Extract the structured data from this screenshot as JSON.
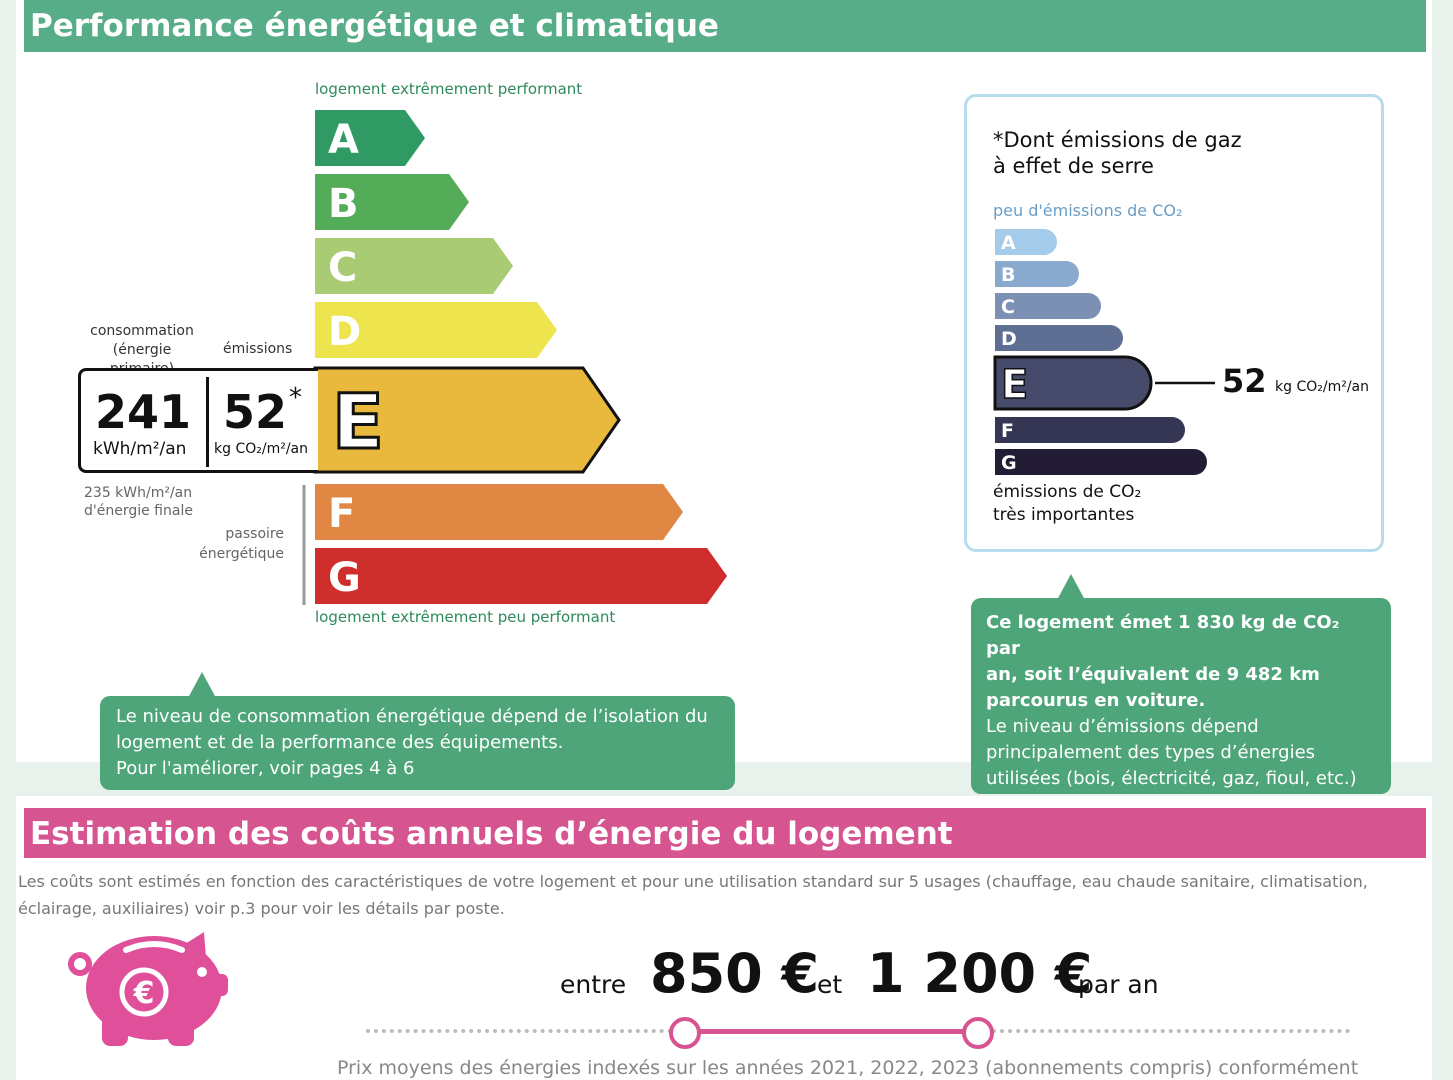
{
  "section1": {
    "title": "Performance énergétique et climatique",
    "top_label": "logement extrêmement performant",
    "bottom_label": "logement extrêmement peu performant",
    "classes": [
      "A",
      "B",
      "C",
      "D",
      "E",
      "F",
      "G"
    ],
    "class_colors": [
      "#2f9a63",
      "#55ac58",
      "#a8cb74",
      "#ede44e",
      "#e9b93d",
      "#e08743",
      "#cf2f2c"
    ],
    "current_class": "E",
    "consumption_label_1": "consommation",
    "consumption_label_2": "(énergie primaire)",
    "emissions_label": "émissions",
    "consumption_value": "241",
    "consumption_unit": "kWh/m²/an",
    "emissions_value": "52",
    "emissions_star": "*",
    "emissions_unit": "kg CO₂/m²/an",
    "final_energy_1": "235 kWh/m²/an",
    "final_energy_2": "d'énergie finale",
    "passoire_1": "passoire",
    "passoire_2": "énergétique",
    "bubble_line1": "Le niveau de consommation énergétique dépend de l’isolation du",
    "bubble_line2": "logement et de la performance des équipements.",
    "bubble_line3": "Pour l'améliorer, voir pages 4 à 6"
  },
  "ges": {
    "title_star": "*",
    "title_line1": "Dont émissions de gaz",
    "title_line2": "à effet de serre",
    "top_label": "peu d'émissions de CO₂",
    "classes": [
      "A",
      "B",
      "C",
      "D",
      "E",
      "F",
      "G"
    ],
    "class_colors": [
      "#a4cbe9",
      "#8aa9cf",
      "#7c90b4",
      "#5f6e93",
      "#464b6c",
      "#343653",
      "#221c34"
    ],
    "current_class": "E",
    "value": "52",
    "unit": "kg CO₂/m²/an",
    "bottom_label_1": "émissions de CO₂",
    "bottom_label_2": "très importantes",
    "bubble_bold_1": "Ce logement émet 1 830 kg de CO₂ par",
    "bubble_bold_2": "an, soit l’équivalent de 9 482 km",
    "bubble_bold_3": "parcourus en voiture.",
    "bubble_line1": "Le niveau d’émissions dépend",
    "bubble_line2": "principalement des types d’énergies",
    "bubble_line3": "utilisées (bois, électricité, gaz, fioul, etc.)"
  },
  "section2": {
    "title": "Estimation des coûts annuels d’énergie du logement",
    "desc_line1": "Les coûts sont estimés en fonction des caractéristiques de votre logement et pour une utilisation standard sur 5 usages (chauffage, eau chaude sanitaire, climatisation,",
    "desc_line2": "éclairage, auxiliaires) voir p.3 pour voir les détails par poste.",
    "word_between": "entre",
    "min_cost": "850 €",
    "word_and": "et",
    "max_cost": "1 200 €",
    "per_year": "par an",
    "footnote": "Prix moyens des énergies indexés sur les années 2021, 2022, 2023 (abonnements compris) conformément",
    "accent_color": "#d65591"
  }
}
